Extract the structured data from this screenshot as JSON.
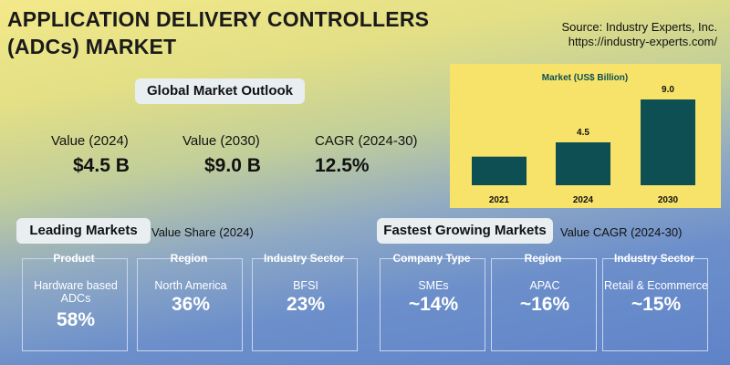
{
  "header": {
    "title_lines": [
      "APPLICATION DELIVERY CONTROLLERS",
      "(ADCs) MARKET"
    ],
    "source": "Source: Industry Experts, Inc.",
    "url": "https://industry-experts.com/"
  },
  "outlook": {
    "title": "Global Market Outlook",
    "items": [
      {
        "label": "Value (2024)",
        "value": "$4.5 B"
      },
      {
        "label": "Value (2030)",
        "value": "$9.0 B"
      },
      {
        "label": "CAGR (2024-30)",
        "value": "12.5%"
      }
    ]
  },
  "chart_data": {
    "type": "bar",
    "title": "Market (US$ Billion)",
    "categories": [
      "2021",
      "2024",
      "2030"
    ],
    "values": [
      3.0,
      4.5,
      9.0
    ],
    "value_labels": [
      null,
      "4.5",
      "9.0"
    ],
    "color": "#0d4f53"
  },
  "leading": {
    "title": "Leading Markets",
    "subtitle": "Value Share (2024)",
    "cards": [
      {
        "heading": "Product",
        "label": "Hardware based ADCs",
        "value": "58%"
      },
      {
        "heading": "Region",
        "label": "North America",
        "value": "36%"
      },
      {
        "heading": "Industry Sector",
        "label": "BFSI",
        "value": "23%"
      }
    ]
  },
  "fastest": {
    "title": "Fastest Growing Markets",
    "subtitle": "Value CAGR (2024-30)",
    "cards": [
      {
        "heading": "Company Type",
        "label": "SMEs",
        "value": "~14%"
      },
      {
        "heading": "Region",
        "label": "APAC",
        "value": "~16%"
      },
      {
        "heading": "Industry Sector",
        "label": "Retail & Ecommerce",
        "value": "~15%"
      }
    ]
  }
}
